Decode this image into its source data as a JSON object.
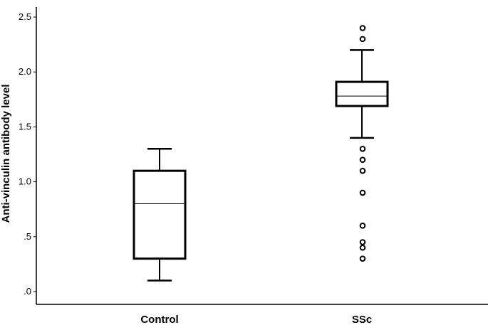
{
  "chart_data": {
    "type": "boxplot",
    "xlabel": "",
    "ylabel": "Anti-vinculin antibody level",
    "ylim": [
      0.0,
      2.5
    ],
    "yticks": [
      {
        "value": 0.0,
        "label": ".0"
      },
      {
        "value": 0.5,
        "label": ".5"
      },
      {
        "value": 1.0,
        "label": "1.0"
      },
      {
        "value": 1.5,
        "label": "1.5"
      },
      {
        "value": 2.0,
        "label": "2.0"
      },
      {
        "value": 2.5,
        "label": "2.5"
      }
    ],
    "grid": false,
    "categories": [
      "Control",
      "SSc"
    ],
    "boxes": [
      {
        "category": "Control",
        "whisker_low": 0.1,
        "q1": 0.3,
        "median": 0.8,
        "q3": 1.1,
        "whisker_high": 1.3,
        "outliers": []
      },
      {
        "category": "SSc",
        "whisker_low": 1.4,
        "q1": 1.69,
        "median": 1.78,
        "q3": 1.91,
        "whisker_high": 2.2,
        "outliers": [
          2.4,
          2.3,
          1.3,
          1.2,
          1.1,
          0.9,
          0.6,
          0.45,
          0.4,
          0.3
        ]
      }
    ]
  }
}
